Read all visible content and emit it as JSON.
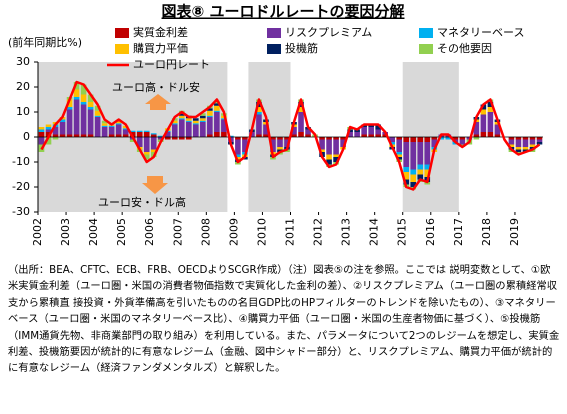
{
  "chart_data": {
    "type": "bar",
    "title": "図表⑧ ユーロドルレートの要因分解",
    "y_label": "(前年同期比%)",
    "annotations": [
      "ユーロ高・ドル安",
      "ユーロ安・ドル高"
    ],
    "note": "（出所：BEA、CFTC、ECB、FRB、OECDよりSCGR作成）（注）図表⑤の注を参照。ここでは 説明変数として、①欧米実質金利差（ユーロ圏・米国の消費者物価指数で実質化した金利の差）、②リスクプレミアム（ユーロ圏の累積経常収支から累積直 接投資・外貨準備高を引いたものの名目GDP比のHPフィルターのトレンドを除いたもの）、③マネタリーベース（ユーロ圏・米国のマネタリーベース比）、④購買力平価（ユーロ圏・米国の生産者物価に基づく）、⑤投機筋（IMM通貨先物、非商業部門の取り組み）を利用している。また、パラメータについて2つのレジームを想定し、実質金利差、投機筋要因が統計的に有意なレジーム（金融、図中シャドー部分）と、リスクプレミアム、購買力平価が統計的に有意なレジーム（経済ファンダメンタルズ）と解釈した。",
    "categories": [
      "2002",
      null,
      null,
      null,
      "2003",
      null,
      null,
      null,
      "2004",
      null,
      null,
      null,
      "2005",
      null,
      null,
      null,
      "2006",
      null,
      null,
      null,
      "2007",
      null,
      null,
      null,
      "2008",
      null,
      null,
      null,
      "2009",
      null,
      null,
      null,
      "2010",
      null,
      null,
      null,
      "2011",
      null,
      null,
      null,
      "2012",
      null,
      null,
      null,
      "2013",
      null,
      null,
      null,
      "2014",
      null,
      null,
      null,
      "2015",
      null,
      null,
      null,
      "2016",
      null,
      null,
      null,
      "2017",
      null,
      null,
      null,
      "2018",
      null,
      null,
      null,
      "2019",
      null,
      null,
      null
    ],
    "ylim": [
      -30,
      30
    ],
    "yticks": [
      -30,
      -20,
      -10,
      0,
      10,
      20,
      30
    ],
    "shaded_quarters": [
      [
        0,
        26
      ],
      [
        30,
        35
      ],
      [
        52,
        59
      ]
    ],
    "shade_color": "#d9d9d9",
    "series": [
      {
        "name": "実質金利差",
        "color": "#c00000",
        "values": [
          2,
          2,
          1,
          1,
          1,
          1,
          1,
          1,
          0,
          0,
          1,
          1,
          1,
          2,
          2,
          2,
          1,
          0,
          -1,
          -1,
          -1,
          -1,
          0,
          0,
          1,
          2,
          2,
          0,
          -1,
          -1,
          0,
          1,
          1,
          -1,
          -1,
          -1,
          1,
          2,
          1,
          0,
          -1,
          -1,
          -1,
          -1,
          0,
          0,
          1,
          1,
          1,
          1,
          0,
          -1,
          -2,
          -2,
          -2,
          -2,
          -1,
          0,
          0,
          -1,
          -1,
          0,
          1,
          2,
          2,
          1,
          0,
          -1,
          -1,
          -1,
          -1,
          -1
        ]
      },
      {
        "name": "リスクプレミアム",
        "color": "#7030a0",
        "values": [
          -3,
          1,
          3,
          5,
          10,
          14,
          12,
          10,
          8,
          4,
          3,
          4,
          2,
          -1,
          -4,
          -6,
          -5,
          -1,
          2,
          5,
          7,
          6,
          5,
          6,
          7,
          8,
          5,
          -2,
          -6,
          -5,
          2,
          8,
          4,
          -5,
          -3,
          -3,
          3,
          8,
          2,
          0,
          -4,
          -6,
          -6,
          -3,
          2,
          2,
          3,
          3,
          2,
          1,
          -2,
          -5,
          -10,
          -11,
          -9,
          -9,
          -3,
          1,
          1,
          -1,
          -2,
          -1,
          5,
          7,
          8,
          4,
          0,
          -2,
          -3,
          -3,
          -2,
          -1
        ]
      },
      {
        "name": "マネタリーベース",
        "color": "#00b0f0",
        "values": [
          1,
          1,
          1,
          1,
          1,
          1,
          1,
          1,
          0.5,
          0.5,
          0.5,
          0.5,
          0.5,
          0.5,
          0.5,
          0.5,
          0.5,
          0.5,
          0.5,
          0.5,
          0.5,
          0.5,
          0.5,
          0.5,
          0.5,
          0.5,
          0.5,
          0.5,
          -1,
          -1,
          0,
          1,
          0,
          0,
          0,
          0,
          0,
          0,
          0,
          0,
          0,
          0,
          0,
          0,
          0,
          0,
          0,
          0,
          0,
          0,
          -1,
          -1,
          -2,
          -2,
          -2,
          -2,
          -1,
          -1,
          -1,
          -1,
          0,
          0,
          0,
          0,
          0,
          0,
          0,
          0,
          0,
          0,
          0,
          0
        ]
      },
      {
        "name": "購買力平価",
        "color": "#ffc000",
        "values": [
          1,
          1,
          1,
          1,
          3,
          3,
          3,
          2,
          2,
          1,
          1,
          1,
          1,
          0,
          -1,
          -1,
          -1,
          0,
          1,
          1,
          1,
          1,
          1,
          1,
          2,
          2,
          1,
          0,
          -1,
          -1,
          0,
          2,
          1,
          -1,
          -1,
          0,
          1,
          2,
          0,
          0,
          -1,
          -2,
          -1,
          -1,
          0,
          0,
          0,
          0,
          0,
          0,
          -1,
          -1,
          -3,
          -3,
          -2,
          -3,
          -1,
          0,
          0,
          0,
          0,
          0,
          1,
          2,
          2,
          1,
          0,
          -1,
          -1,
          -1,
          -1,
          0
        ]
      },
      {
        "name": "投機筋",
        "color": "#002060",
        "values": [
          0,
          0,
          0,
          0,
          0,
          0,
          0,
          0,
          0,
          0,
          0,
          0,
          0,
          0,
          0,
          0,
          0,
          0,
          0,
          0,
          1,
          1,
          1,
          1,
          1,
          1,
          0,
          -1,
          -1,
          -1,
          1,
          2,
          1,
          -1,
          -1,
          -1,
          1,
          2,
          1,
          0,
          -2,
          -2,
          -2,
          0,
          1,
          1,
          1,
          1,
          2,
          0,
          -1,
          -1,
          -2,
          -2,
          -2,
          -2,
          0,
          0,
          0,
          0,
          0,
          0,
          1,
          2,
          2,
          1,
          0,
          -1,
          -1,
          -1,
          -1,
          -1
        ]
      },
      {
        "name": "その他要因",
        "color": "#92d050",
        "values": [
          -3,
          -3,
          -1,
          0,
          1,
          3,
          4,
          3,
          2,
          1,
          0,
          0,
          0,
          -1,
          -1,
          -2,
          -2,
          -1,
          0,
          1,
          1,
          0,
          0,
          1,
          1,
          1,
          1,
          0,
          -1,
          0,
          0,
          1,
          0,
          -1,
          -1,
          -1,
          0,
          1,
          0,
          1,
          0,
          -1,
          -1,
          0,
          1,
          0,
          0,
          0,
          0,
          0,
          0,
          -1,
          -1,
          -1,
          -1,
          -1,
          0,
          0,
          0,
          0,
          -1,
          -2,
          -1,
          0,
          1,
          0,
          0,
          -1,
          -1,
          0,
          -1,
          0
        ]
      },
      {
        "name": "ユーロ円レート",
        "color": "#ff0000",
        "mark": "line",
        "values": [
          -5,
          0,
          5,
          8,
          15,
          22,
          21,
          17,
          13,
          7,
          5,
          7,
          5,
          0,
          -5,
          -10,
          -8,
          -2,
          3,
          8,
          10,
          8,
          8,
          10,
          12,
          15,
          10,
          -3,
          -10,
          -8,
          3,
          15,
          8,
          -8,
          -6,
          -5,
          6,
          15,
          4,
          1,
          -8,
          -12,
          -11,
          -5,
          4,
          3,
          5,
          5,
          5,
          2,
          -4,
          -10,
          -20,
          -21,
          -17,
          -18,
          -5,
          1,
          1,
          -2,
          -4,
          -2,
          8,
          13,
          15,
          7,
          -1,
          -5,
          -7,
          -6,
          -5,
          -3
        ]
      }
    ]
  }
}
